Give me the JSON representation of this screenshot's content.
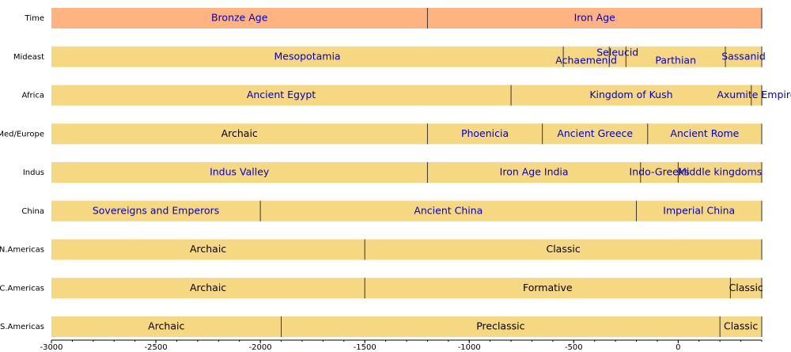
{
  "chart_data": {
    "type": "timeline",
    "xlim": [
      -3000,
      400
    ],
    "xticks": [
      -3000,
      -2500,
      -2000,
      -1500,
      -1000,
      -500,
      0
    ],
    "minor_xticks": [
      -3000,
      -2900,
      -2800,
      -2700,
      -2600,
      -2500,
      -2400,
      -2300,
      -2200,
      -2100,
      -2000,
      -1900,
      -1800,
      -1700,
      -1600,
      -1500,
      -1400,
      -1300,
      -1200,
      -1100,
      -1000,
      -900,
      -800,
      -700,
      -600,
      -500,
      -400,
      -300,
      -200,
      -100,
      0,
      100,
      200,
      300,
      400
    ],
    "rows": [
      {
        "name": "Time",
        "color": "#ffb380",
        "segments": [
          {
            "label": "Bronze Age",
            "start": -3000,
            "end": -1200,
            "text_color": "#0000cc"
          },
          {
            "label": "Iron Age",
            "start": -1200,
            "end": 400,
            "text_color": "#0000cc"
          }
        ]
      },
      {
        "name": "Mideast",
        "color": "#f7d882",
        "segments": [
          {
            "label": "Mesopotamia",
            "start": -3000,
            "end": -550,
            "text_color": "#0000cc"
          },
          {
            "label": "Achaemenid",
            "start": -550,
            "end": -330,
            "text_color": "#0000cc"
          },
          {
            "label": "Seleucid",
            "start": -330,
            "end": -250,
            "text_color": "#0000cc"
          },
          {
            "label": "Parthian",
            "start": -250,
            "end": 226,
            "text_color": "#0000cc"
          },
          {
            "label": "Sassanid",
            "start": 226,
            "end": 400,
            "text_color": "#0000cc"
          }
        ]
      },
      {
        "name": "Africa",
        "color": "#f7d882",
        "segments": [
          {
            "label": "Ancient Egypt",
            "start": -3000,
            "end": -800,
            "text_color": "#0000cc"
          },
          {
            "label": "Kingdom of Kush",
            "start": -800,
            "end": 350,
            "text_color": "#0000cc"
          },
          {
            "label": "Axumite Empire",
            "start": 350,
            "end": 400,
            "text_color": "#0000cc"
          }
        ]
      },
      {
        "name": "Med/Europe",
        "color": "#f7d882",
        "segments": [
          {
            "label": "Archaic",
            "start": -3000,
            "end": -1200,
            "text_color": "#000000"
          },
          {
            "label": "Phoenicia",
            "start": -1200,
            "end": -650,
            "text_color": "#0000cc"
          },
          {
            "label": "Ancient Greece",
            "start": -650,
            "end": -146,
            "text_color": "#0000cc"
          },
          {
            "label": "Ancient Rome",
            "start": -146,
            "end": 400,
            "text_color": "#0000cc"
          }
        ]
      },
      {
        "name": "Indus",
        "color": "#f7d882",
        "segments": [
          {
            "label": "Indus Valley",
            "start": -3000,
            "end": -1200,
            "text_color": "#0000cc"
          },
          {
            "label": "Iron Age India",
            "start": -1200,
            "end": -180,
            "text_color": "#0000cc"
          },
          {
            "label": "Indo-Greeks",
            "start": -180,
            "end": 0,
            "text_color": "#0000cc"
          },
          {
            "label": "Middle kingdoms",
            "start": 0,
            "end": 400,
            "text_color": "#0000cc"
          }
        ]
      },
      {
        "name": "China",
        "color": "#f7d882",
        "segments": [
          {
            "label": "Sovereigns and Emperors",
            "start": -3000,
            "end": -2000,
            "text_color": "#0000cc"
          },
          {
            "label": "Ancient China",
            "start": -2000,
            "end": -200,
            "text_color": "#0000cc"
          },
          {
            "label": "Imperial China",
            "start": -200,
            "end": 400,
            "text_color": "#0000cc"
          }
        ]
      },
      {
        "name": "N.Americas",
        "color": "#f7d882",
        "segments": [
          {
            "label": "Archaic",
            "start": -3000,
            "end": -1500,
            "text_color": "#000000"
          },
          {
            "label": "Classic",
            "start": -1500,
            "end": 400,
            "text_color": "#000000"
          }
        ]
      },
      {
        "name": "C.Americas",
        "color": "#f7d882",
        "segments": [
          {
            "label": "Archaic",
            "start": -3000,
            "end": -1500,
            "text_color": "#000000"
          },
          {
            "label": "Formative",
            "start": -1500,
            "end": 250,
            "text_color": "#000000"
          },
          {
            "label": "Classic",
            "start": 250,
            "end": 400,
            "text_color": "#000000"
          }
        ]
      },
      {
        "name": "S.Americas",
        "color": "#f7d882",
        "segments": [
          {
            "label": "Archaic",
            "start": -3000,
            "end": -1900,
            "text_color": "#000000"
          },
          {
            "label": "Preclassic",
            "start": -1900,
            "end": 200,
            "text_color": "#000000"
          },
          {
            "label": "Classic",
            "start": 200,
            "end": 400,
            "text_color": "#000000"
          }
        ]
      }
    ]
  }
}
